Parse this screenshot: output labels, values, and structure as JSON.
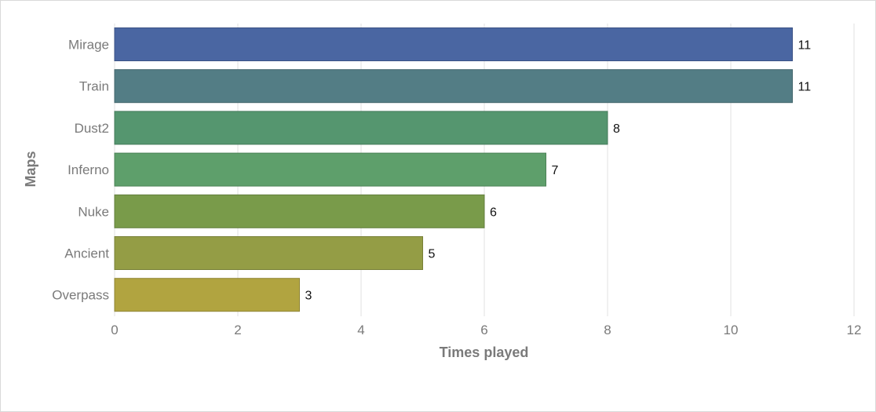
{
  "chart_data": {
    "type": "bar",
    "orientation": "horizontal",
    "categories": [
      "Mirage",
      "Train",
      "Dust2",
      "Inferno",
      "Nuke",
      "Ancient",
      "Overpass"
    ],
    "values": [
      11,
      11,
      8,
      7,
      6,
      5,
      3
    ],
    "bar_colors": [
      "#4a66a2",
      "#537d85",
      "#55966f",
      "#5e9f6b",
      "#799b4a",
      "#949d45",
      "#b1a440"
    ],
    "bar_edge_colors": [
      "#3b5285",
      "#43666c",
      "#447a5a",
      "#4c8257",
      "#627e3c",
      "#788038",
      "#8f8534"
    ],
    "xlabel": "Times played",
    "ylabel": "Maps",
    "xlim": [
      0,
      12
    ],
    "xticks": [
      0,
      2,
      4,
      6,
      8,
      10,
      12
    ],
    "grid": true,
    "data_labels": true
  }
}
